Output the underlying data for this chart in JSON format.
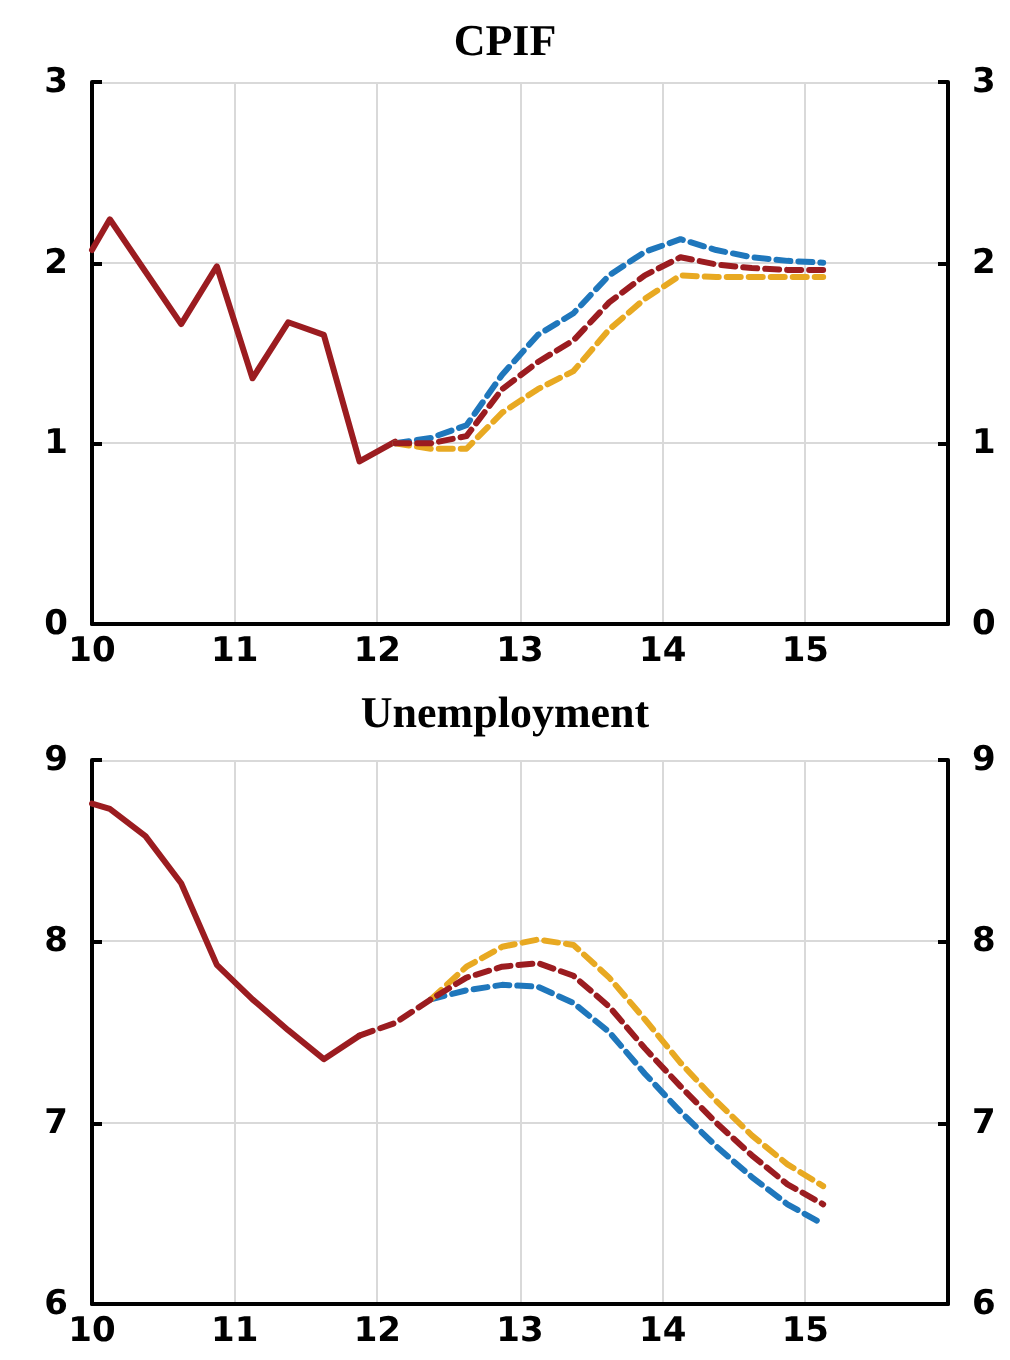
{
  "chart_data": [
    {
      "type": "line",
      "title": "CPIF",
      "xlim": [
        10,
        16
      ],
      "xticks": [
        10,
        11,
        12,
        13,
        14,
        15
      ],
      "ylim": [
        0,
        3
      ],
      "yticks": [
        0,
        1,
        2,
        3
      ],
      "y2lim": [
        0,
        3
      ],
      "y2ticks": [
        0,
        1,
        2,
        3
      ],
      "grid": true,
      "marker": "none",
      "series": [
        {
          "color": "#9b1c20",
          "line_style": "solid",
          "x": [
            10,
            10.125,
            10.375,
            10.625,
            10.875,
            11.125,
            11.375,
            11.625,
            11.875,
            12.125
          ],
          "values": [
            2.07,
            2.24,
            1.95,
            1.66,
            1.98,
            1.36,
            1.67,
            1.6,
            0.9,
            1.01
          ]
        },
        {
          "color": "#1f77bc",
          "line_style": "dashed",
          "x": [
            12.125,
            12.375,
            12.625,
            12.875,
            13.125,
            13.375,
            13.625,
            13.875,
            14.125,
            14.375,
            14.625,
            14.875,
            15.125
          ],
          "values": [
            1.0,
            1.03,
            1.1,
            1.38,
            1.6,
            1.72,
            1.93,
            2.06,
            2.13,
            2.07,
            2.03,
            2.01,
            2.0
          ]
        },
        {
          "color": "#e8a922",
          "line_style": "dashed",
          "x": [
            12.125,
            12.375,
            12.625,
            12.875,
            13.125,
            13.375,
            13.625,
            13.875,
            14.125,
            14.375,
            14.625,
            14.875,
            15.125
          ],
          "values": [
            1.0,
            0.97,
            0.97,
            1.17,
            1.3,
            1.4,
            1.63,
            1.8,
            1.93,
            1.92,
            1.92,
            1.92,
            1.92
          ]
        },
        {
          "color": "#9b1c20",
          "line_style": "dashed",
          "x": [
            12.125,
            12.375,
            12.625,
            12.875,
            13.125,
            13.375,
            13.625,
            13.875,
            14.125,
            14.375,
            14.625,
            14.875,
            15.125
          ],
          "values": [
            1.0,
            1.0,
            1.04,
            1.3,
            1.45,
            1.57,
            1.78,
            1.93,
            2.03,
            1.99,
            1.97,
            1.96,
            1.96
          ]
        }
      ]
    },
    {
      "type": "line",
      "title": "Unemployment",
      "xlim": [
        10,
        16
      ],
      "xticks": [
        10,
        11,
        12,
        13,
        14,
        15
      ],
      "ylim": [
        6,
        9
      ],
      "yticks": [
        6,
        7,
        8,
        9
      ],
      "y2lim": [
        6,
        9
      ],
      "y2ticks": [
        6,
        7,
        8,
        9
      ],
      "grid": true,
      "marker": "none",
      "series": [
        {
          "color": "#9b1c20",
          "line_style": "solid",
          "x": [
            10,
            10.125,
            10.375,
            10.625,
            10.875,
            11.125,
            11.375,
            11.625,
            11.875
          ],
          "values": [
            8.76,
            8.73,
            8.58,
            8.32,
            7.87,
            7.68,
            7.51,
            7.35,
            7.48
          ]
        },
        {
          "color": "#1f77bc",
          "line_style": "dashed",
          "x": [
            12.375,
            12.625,
            12.875,
            13.125,
            13.375,
            13.625,
            13.875,
            14.125,
            14.375,
            14.625,
            14.875,
            15.125
          ],
          "values": [
            7.68,
            7.73,
            7.76,
            7.75,
            7.66,
            7.5,
            7.27,
            7.06,
            6.87,
            6.7,
            6.55,
            6.44
          ]
        },
        {
          "color": "#e8a922",
          "line_style": "dashed",
          "x": [
            12.375,
            12.625,
            12.875,
            13.125,
            13.375,
            13.625,
            13.875,
            14.125,
            14.375,
            14.625,
            14.875,
            15.125
          ],
          "values": [
            7.68,
            7.86,
            7.97,
            8.01,
            7.98,
            7.8,
            7.57,
            7.33,
            7.12,
            6.93,
            6.77,
            6.65
          ]
        },
        {
          "color": "#9b1c20",
          "line_style": "dashed",
          "x": [
            11.875,
            12.125,
            12.375,
            12.625,
            12.875,
            13.125,
            13.375,
            13.625,
            13.875,
            14.125,
            14.375,
            14.625,
            14.875,
            15.125
          ],
          "values": [
            7.48,
            7.55,
            7.68,
            7.8,
            7.86,
            7.88,
            7.81,
            7.64,
            7.41,
            7.2,
            7.0,
            6.82,
            6.66,
            6.55
          ]
        }
      ]
    }
  ]
}
